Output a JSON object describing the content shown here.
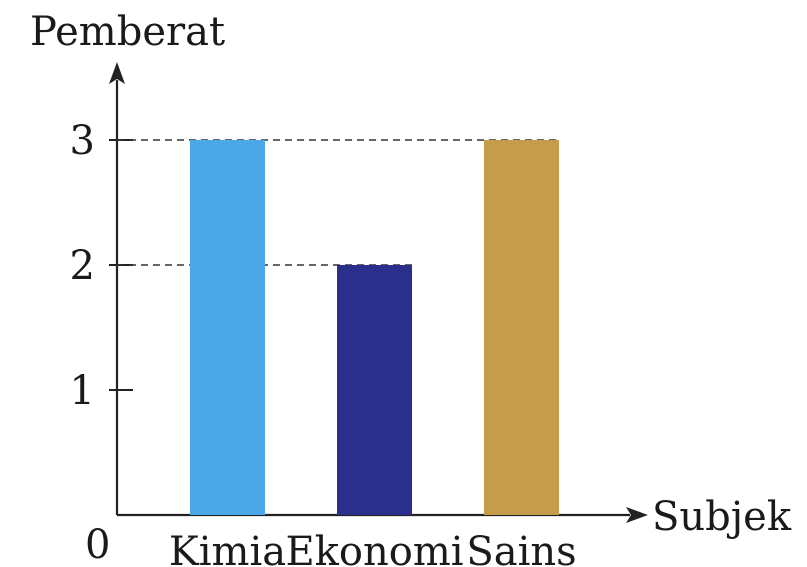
{
  "chart_data": {
    "type": "bar",
    "ylabel": "Pemberat",
    "xlabel": "Subjek",
    "origin_label": "0",
    "categories": [
      "Kimia",
      "Ekonomi",
      "Sains"
    ],
    "values": [
      3,
      2,
      3
    ],
    "colors": [
      "#4aa8e8",
      "#2b2f8c",
      "#c49c4a"
    ],
    "yticks": [
      1,
      2,
      3
    ],
    "ylim": [
      0,
      3
    ],
    "reference_lines": [
      3,
      2
    ],
    "grid": false,
    "legend": "none"
  }
}
